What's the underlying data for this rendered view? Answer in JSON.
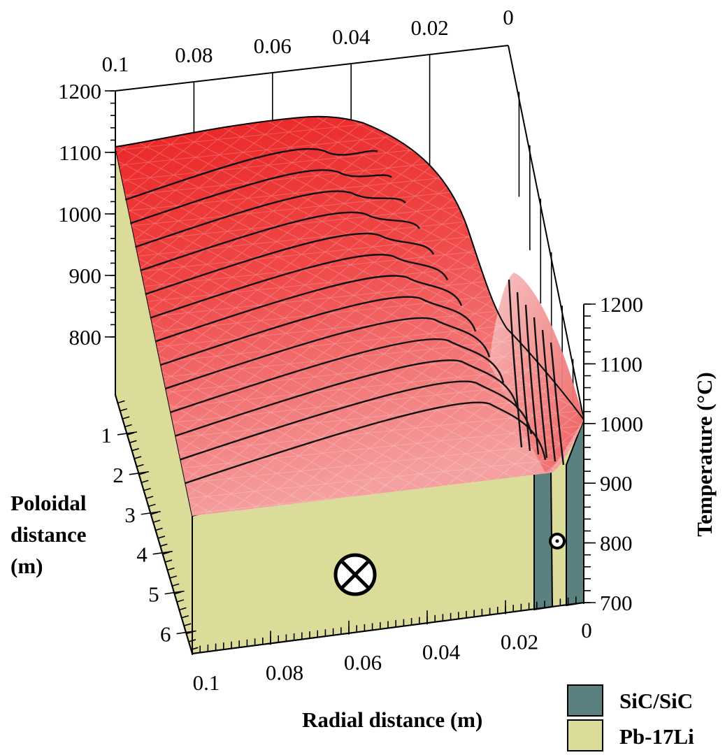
{
  "chart_data": {
    "type": "surface3d",
    "x_axis": {
      "label": "Radial distance (m)",
      "ticks": [
        "0.1",
        "0.08",
        "0.06",
        "0.04",
        "0.02",
        "0"
      ],
      "back_ticks": [
        "0.1",
        "0.08",
        "0.06",
        "0.04",
        "0.02",
        "0"
      ],
      "range": [
        0.1,
        0
      ]
    },
    "y_axis": {
      "label_lines": [
        "Poloidal",
        "distance",
        "(m)"
      ],
      "ticks": [
        "1",
        "2",
        "3",
        "4",
        "5",
        "6"
      ],
      "range": [
        0,
        6.5
      ]
    },
    "z_axis": {
      "label": "Temperature (°C)",
      "ticks": [
        "700",
        "800",
        "900",
        "1000",
        "1100",
        "1200"
      ],
      "back_ticks": [
        "800",
        "900",
        "1000",
        "1100",
        "1200"
      ],
      "range": [
        700,
        1200
      ]
    },
    "regions": [
      {
        "name": "SiC/SiC",
        "color": "#5a8080"
      },
      {
        "name": "Pb-17Li",
        "color": "#dcdc9a"
      }
    ],
    "surface": {
      "color_high": "#ec2b2b",
      "color_low": "#f59a9a",
      "contour_count": 13
    },
    "flow_symbols": [
      "into-page",
      "out-of-page"
    ]
  }
}
